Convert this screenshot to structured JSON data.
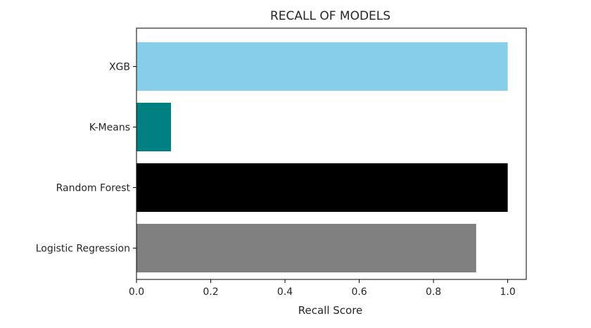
{
  "chart_data": {
    "type": "bar",
    "orientation": "horizontal",
    "title": "RECALL OF MODELS",
    "xlabel": "Recall Score",
    "ylabel": "",
    "categories": [
      "Logistic Regression",
      "Random Forest",
      "K-Means",
      "XGB"
    ],
    "values": [
      0.915,
      1.0,
      0.093,
      1.0
    ],
    "bar_colors": [
      "#808080",
      "#000000",
      "#008080",
      "#87ceeb"
    ],
    "xlim": [
      0.0,
      1.05
    ],
    "xticks": [
      "0.0",
      "0.2",
      "0.4",
      "0.6",
      "0.8",
      "1.0"
    ],
    "grid": false,
    "legend": "none"
  }
}
